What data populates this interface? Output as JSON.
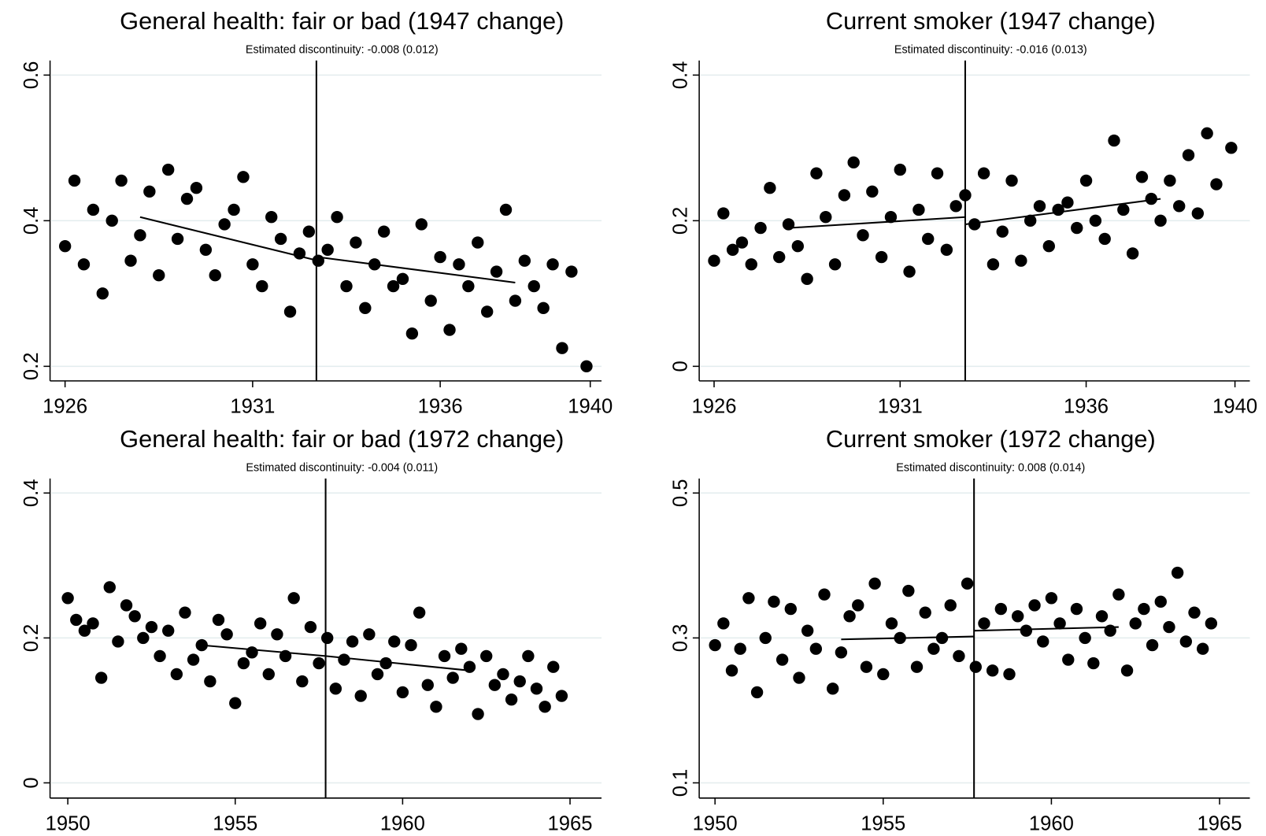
{
  "chart_data": [
    {
      "type": "scatter",
      "title": "General health: fair or bad (1947 change)",
      "annotation": "Estimated discontinuity: -0.008 (0.012)",
      "x": [
        1926,
        1926.25,
        1926.5,
        1926.75,
        1927,
        1927.25,
        1927.5,
        1927.75,
        1928,
        1928.25,
        1928.5,
        1928.75,
        1929,
        1929.25,
        1929.5,
        1929.75,
        1930,
        1930.25,
        1930.5,
        1930.75,
        1931,
        1931.25,
        1931.5,
        1931.75,
        1932,
        1932.25,
        1932.5,
        1932.75,
        1933,
        1933.25,
        1933.5,
        1933.75,
        1934,
        1934.25,
        1934.5,
        1934.75,
        1935,
        1935.25,
        1935.5,
        1935.75,
        1936,
        1936.25,
        1936.5,
        1936.75,
        1937,
        1937.25,
        1937.5,
        1937.75,
        1938,
        1938.25,
        1938.5,
        1938.75,
        1939,
        1939.25,
        1939.5,
        1939.9
      ],
      "values": [
        0.365,
        0.455,
        0.34,
        0.415,
        0.3,
        0.4,
        0.455,
        0.345,
        0.38,
        0.44,
        0.325,
        0.47,
        0.375,
        0.43,
        0.445,
        0.36,
        0.325,
        0.395,
        0.415,
        0.46,
        0.34,
        0.31,
        0.405,
        0.375,
        0.275,
        0.355,
        0.385,
        0.345,
        0.36,
        0.405,
        0.31,
        0.37,
        0.28,
        0.34,
        0.385,
        0.31,
        0.32,
        0.245,
        0.395,
        0.29,
        0.35,
        0.25,
        0.34,
        0.31,
        0.37,
        0.275,
        0.33,
        0.415,
        0.29,
        0.345,
        0.31,
        0.28,
        0.34,
        0.225,
        0.33,
        0.2
      ],
      "fit": [
        {
          "x": [
            1928,
            1932.75
          ],
          "values": [
            0.405,
            0.345
          ]
        },
        {
          "x": [
            1932.75,
            1938
          ],
          "values": [
            0.35,
            0.315
          ]
        }
      ],
      "cutoff": 1932.7,
      "color": "#000000",
      "xlim": [
        1925.6,
        1940.3
      ],
      "ylim": [
        0.18,
        0.62
      ],
      "xticks": [
        1926,
        1931,
        1936,
        1940
      ],
      "yticks": [
        0.2,
        0.4,
        0.6
      ],
      "grid": true
    },
    {
      "type": "scatter",
      "title": "Current smoker (1947 change)",
      "annotation": "Estimated discontinuity: -0.016 (0.013)",
      "x": [
        1926,
        1926.25,
        1926.5,
        1926.75,
        1927,
        1927.25,
        1927.5,
        1927.75,
        1928,
        1928.25,
        1928.5,
        1928.75,
        1929,
        1929.25,
        1929.5,
        1929.75,
        1930,
        1930.25,
        1930.5,
        1930.75,
        1931,
        1931.25,
        1931.5,
        1931.75,
        1932,
        1932.25,
        1932.5,
        1932.75,
        1933,
        1933.25,
        1933.5,
        1933.75,
        1934,
        1934.25,
        1934.5,
        1934.75,
        1935,
        1935.25,
        1935.5,
        1935.75,
        1936,
        1936.25,
        1936.5,
        1936.75,
        1937,
        1937.25,
        1937.5,
        1937.75,
        1938,
        1938.25,
        1938.5,
        1938.75,
        1939,
        1939.25,
        1939.5,
        1939.9
      ],
      "values": [
        0.145,
        0.21,
        0.16,
        0.17,
        0.14,
        0.19,
        0.245,
        0.15,
        0.195,
        0.165,
        0.12,
        0.265,
        0.205,
        0.14,
        0.235,
        0.28,
        0.18,
        0.24,
        0.15,
        0.205,
        0.27,
        0.13,
        0.215,
        0.175,
        0.265,
        0.16,
        0.22,
        0.235,
        0.195,
        0.265,
        0.14,
        0.185,
        0.255,
        0.145,
        0.2,
        0.22,
        0.165,
        0.215,
        0.225,
        0.19,
        0.255,
        0.2,
        0.175,
        0.31,
        0.215,
        0.155,
        0.26,
        0.23,
        0.2,
        0.255,
        0.22,
        0.29,
        0.21,
        0.32,
        0.25,
        0.3
      ],
      "fit": [
        {
          "x": [
            1928,
            1932.75
          ],
          "values": [
            0.19,
            0.205
          ]
        },
        {
          "x": [
            1932.75,
            1938
          ],
          "values": [
            0.195,
            0.23
          ]
        }
      ],
      "cutoff": 1932.75,
      "color": "#000000",
      "xlim": [
        1925.6,
        1940.4
      ],
      "ylim": [
        -0.02,
        0.42
      ],
      "xticks": [
        1926,
        1931,
        1936,
        1940
      ],
      "yticks": [
        0,
        0.2,
        0.4
      ],
      "grid": true
    },
    {
      "type": "scatter",
      "title": "General health: fair or bad (1972 change)",
      "annotation": "Estimated discontinuity: -0.004 (0.011)",
      "x": [
        1950,
        1950.25,
        1950.5,
        1950.75,
        1951,
        1951.25,
        1951.5,
        1951.75,
        1952,
        1952.25,
        1952.5,
        1952.75,
        1953,
        1953.25,
        1953.5,
        1953.75,
        1954,
        1954.25,
        1954.5,
        1954.75,
        1955,
        1955.25,
        1955.5,
        1955.75,
        1956,
        1956.25,
        1956.5,
        1956.75,
        1957,
        1957.25,
        1957.5,
        1957.75,
        1958,
        1958.25,
        1958.5,
        1958.75,
        1959,
        1959.25,
        1959.5,
        1959.75,
        1960,
        1960.25,
        1960.5,
        1960.75,
        1961,
        1961.25,
        1961.5,
        1961.75,
        1962,
        1962.25,
        1962.5,
        1962.75,
        1963,
        1963.25,
        1963.5,
        1963.75,
        1964,
        1964.25,
        1964.5,
        1964.75
      ],
      "values": [
        0.255,
        0.225,
        0.21,
        0.22,
        0.145,
        0.27,
        0.195,
        0.245,
        0.23,
        0.2,
        0.215,
        0.175,
        0.21,
        0.15,
        0.235,
        0.17,
        0.19,
        0.14,
        0.225,
        0.205,
        0.11,
        0.165,
        0.18,
        0.22,
        0.15,
        0.205,
        0.175,
        0.255,
        0.14,
        0.215,
        0.165,
        0.2,
        0.13,
        0.17,
        0.195,
        0.12,
        0.205,
        0.15,
        0.165,
        0.195,
        0.125,
        0.19,
        0.235,
        0.135,
        0.105,
        0.175,
        0.145,
        0.185,
        0.16,
        0.095,
        0.175,
        0.135,
        0.15,
        0.115,
        0.14,
        0.175,
        0.13,
        0.105,
        0.16,
        0.12
      ],
      "fit": [
        {
          "x": [
            1954,
            1957.7
          ],
          "values": [
            0.19,
            0.175
          ]
        },
        {
          "x": [
            1957.7,
            1962
          ],
          "values": [
            0.175,
            0.155
          ]
        }
      ],
      "cutoff": 1957.7,
      "color": "#000000",
      "xlim": [
        1949.47,
        1965.94
      ],
      "ylim": [
        -0.021,
        0.42
      ],
      "xticks": [
        1950,
        1955,
        1960,
        1965
      ],
      "yticks": [
        0,
        0.2,
        0.4
      ],
      "grid": true
    },
    {
      "type": "scatter",
      "title": "Current smoker (1972 change)",
      "annotation": "Estimated discontinuity: 0.008 (0.014)",
      "x": [
        1950,
        1950.25,
        1950.5,
        1950.75,
        1951,
        1951.25,
        1951.5,
        1951.75,
        1952,
        1952.25,
        1952.5,
        1952.75,
        1953,
        1953.25,
        1953.5,
        1953.75,
        1954,
        1954.25,
        1954.5,
        1954.75,
        1955,
        1955.25,
        1955.5,
        1955.75,
        1956,
        1956.25,
        1956.5,
        1956.75,
        1957,
        1957.25,
        1957.5,
        1957.75,
        1958,
        1958.25,
        1958.5,
        1958.75,
        1959,
        1959.25,
        1959.5,
        1959.75,
        1960,
        1960.25,
        1960.5,
        1960.75,
        1961,
        1961.25,
        1961.5,
        1961.75,
        1962,
        1962.25,
        1962.5,
        1962.75,
        1963,
        1963.25,
        1963.5,
        1963.75,
        1964,
        1964.25,
        1964.5,
        1964.75
      ],
      "values": [
        0.29,
        0.32,
        0.255,
        0.285,
        0.355,
        0.225,
        0.3,
        0.35,
        0.27,
        0.34,
        0.245,
        0.31,
        0.285,
        0.36,
        0.23,
        0.28,
        0.33,
        0.345,
        0.26,
        0.375,
        0.25,
        0.32,
        0.3,
        0.365,
        0.26,
        0.335,
        0.285,
        0.3,
        0.345,
        0.275,
        0.375,
        0.26,
        0.32,
        0.255,
        0.34,
        0.25,
        0.33,
        0.31,
        0.345,
        0.295,
        0.355,
        0.32,
        0.27,
        0.34,
        0.3,
        0.265,
        0.33,
        0.31,
        0.36,
        0.255,
        0.32,
        0.34,
        0.29,
        0.35,
        0.315,
        0.39,
        0.295,
        0.335,
        0.285,
        0.32
      ],
      "fit": [
        {
          "x": [
            1953.75,
            1957.7
          ],
          "values": [
            0.298,
            0.302
          ]
        },
        {
          "x": [
            1957.7,
            1962
          ],
          "values": [
            0.31,
            0.315
          ]
        }
      ],
      "cutoff": 1957.7,
      "color": "#000000",
      "xlim": [
        1949.53,
        1965.9
      ],
      "ylim": [
        0.079,
        0.52
      ],
      "xticks": [
        1950,
        1955,
        1960,
        1965
      ],
      "yticks": [
        0.1,
        0.3,
        0.5
      ],
      "grid": true
    }
  ]
}
